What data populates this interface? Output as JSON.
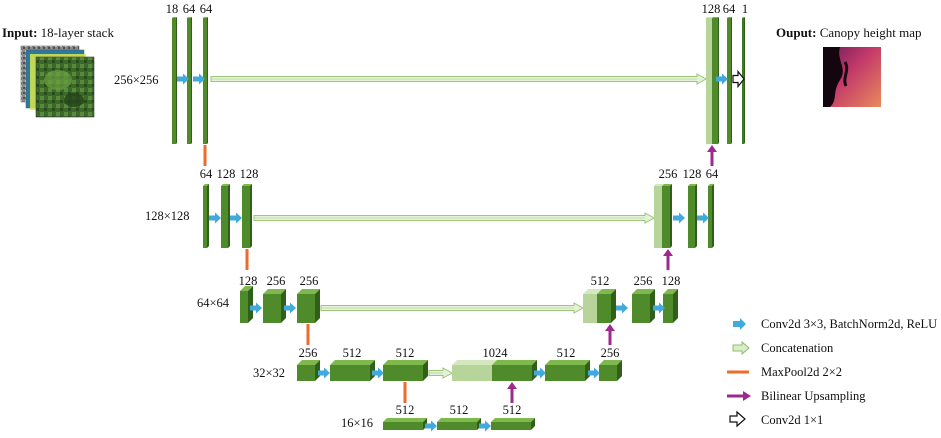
{
  "input": {
    "bold": "Input:",
    "text": "18-layer stack"
  },
  "output": {
    "bold": "Ouput:",
    "text": "Canopy height map"
  },
  "resolutions": [
    "256×256",
    "128×128",
    "64×64",
    "32×32",
    "16×16"
  ],
  "labels": {
    "l0_enc": [
      "18",
      "64",
      "64"
    ],
    "l0_dec": [
      "128",
      "64",
      "1"
    ],
    "l1_enc": [
      "64",
      "128",
      "128"
    ],
    "l1_dec": [
      "256",
      "128",
      "64"
    ],
    "l2_enc": [
      "128",
      "256",
      "256"
    ],
    "l2_dec": [
      "512",
      "256",
      "128"
    ],
    "l3_enc": [
      "256",
      "512",
      "512"
    ],
    "l3_dec": [
      "1024",
      "512",
      "256"
    ],
    "l4": [
      "512",
      "512",
      "512"
    ]
  },
  "legend": [
    {
      "icon": "conv-arrow-icon",
      "label": "Conv2d 3×3, BatchNorm2d, ReLU"
    },
    {
      "icon": "concat-arrow-icon",
      "label": "Concatenation"
    },
    {
      "icon": "maxpool-line-icon",
      "label": "MaxPool2d 2×2"
    },
    {
      "icon": "upsample-arrow-icon",
      "label": "Bilinear Upsampling"
    },
    {
      "icon": "conv1x1-arrow-icon",
      "label": "Conv2d 1×1"
    }
  ],
  "colors": {
    "block_front": "#4f8a2b",
    "block_top": "#7fb84d",
    "block_side": "#2f5f18",
    "concat_front": "#b7d59a",
    "conv_arrow": "#41a9dc",
    "maxpool": "#ef6b2b",
    "upsample": "#9c2a8e"
  }
}
